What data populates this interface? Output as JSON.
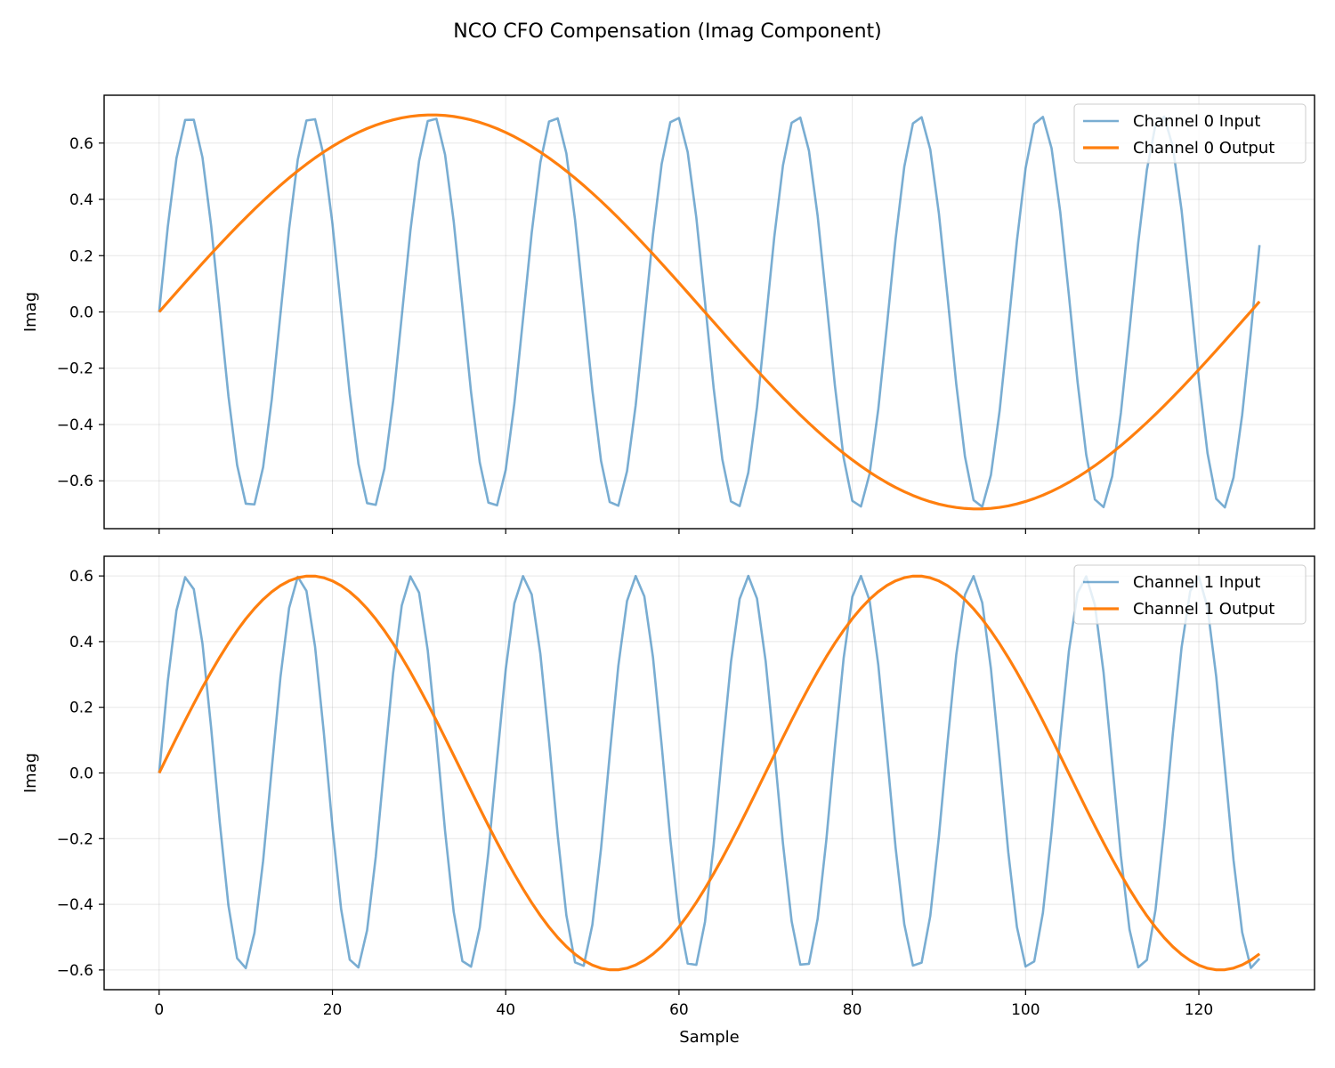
{
  "figure": {
    "suptitle": "NCO CFO Compensation (Imag Component)",
    "xlabel": "Sample"
  },
  "chart_data": [
    {
      "type": "line",
      "title": "",
      "xlabel": "",
      "ylabel": "Imag",
      "xlim": [
        -6.35,
        133.35
      ],
      "ylim": [
        -0.77,
        0.77
      ],
      "xticks": [
        0,
        20,
        40,
        60,
        80,
        100,
        120
      ],
      "yticks": [
        -0.6,
        -0.4,
        -0.2,
        0.0,
        0.2,
        0.4,
        0.6
      ],
      "ytick_labels": [
        "−0.6",
        "−0.4",
        "−0.2",
        "0.0",
        "0.2",
        "0.4",
        "0.6"
      ],
      "grid": true,
      "legend_position": "top-right",
      "n_samples": 128,
      "series": [
        {
          "name": "Channel 0 Input",
          "color": "#1f77b4",
          "alpha": 0.6,
          "model": "amplitude*sin(2*pi*frequency*n)",
          "amplitude": 0.7,
          "frequency": 0.0713
        },
        {
          "name": "Channel 0 Output",
          "color": "#ff7f0e",
          "alpha": 1.0,
          "model": "amplitude*sin(2*pi*frequency*n)",
          "amplitude": 0.7,
          "frequency": 0.00794
        }
      ]
    },
    {
      "type": "line",
      "title": "",
      "xlabel": "Sample",
      "ylabel": "Imag",
      "xlim": [
        -6.35,
        133.35
      ],
      "ylim": [
        -0.66,
        0.66
      ],
      "xticks": [
        0,
        20,
        40,
        60,
        80,
        100,
        120
      ],
      "xtick_labels": [
        "0",
        "20",
        "40",
        "60",
        "80",
        "100",
        "120"
      ],
      "yticks": [
        -0.6,
        -0.4,
        -0.2,
        0.0,
        0.2,
        0.4,
        0.6
      ],
      "ytick_labels": [
        "−0.6",
        "−0.4",
        "−0.2",
        "0.0",
        "0.2",
        "0.4",
        "0.6"
      ],
      "grid": true,
      "legend_position": "top-right",
      "n_samples": 128,
      "series": [
        {
          "name": "Channel 1 Input",
          "color": "#1f77b4",
          "alpha": 0.6,
          "model": "amplitude*sin(2*pi*frequency*n)",
          "amplitude": 0.6,
          "frequency": 0.0772
        },
        {
          "name": "Channel 1 Output",
          "color": "#ff7f0e",
          "alpha": 1.0,
          "model": "amplitude*sin(2*pi*frequency*n)",
          "amplitude": 0.6,
          "frequency": 0.01429
        }
      ]
    }
  ]
}
